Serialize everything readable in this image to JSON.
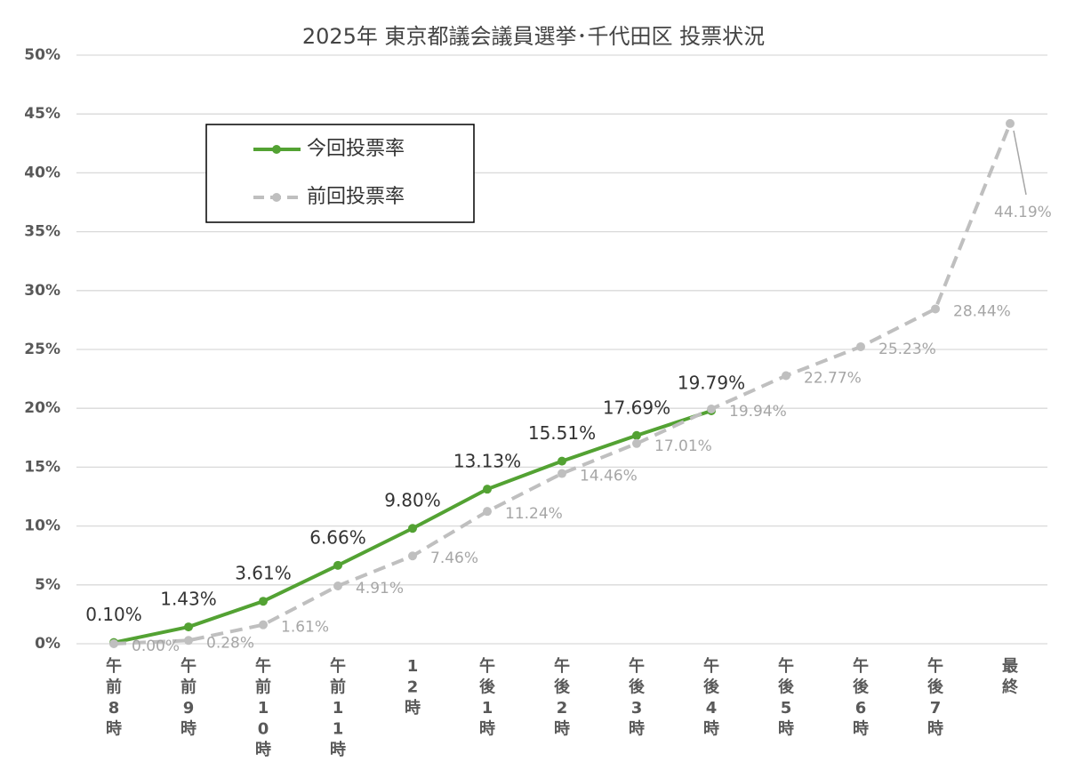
{
  "chart_data": {
    "type": "line",
    "title": "2025年  東京都議会議員選挙･千代田区  投票状況",
    "categories": [
      "午前8時",
      "午前9時",
      "午前10時",
      "午前11時",
      "12時",
      "午後1時",
      "午後2時",
      "午後3時",
      "午後4時",
      "午後5時",
      "午後6時",
      "午後7時",
      "最終"
    ],
    "series": [
      {
        "name": "今回投票率",
        "color": "#53a233",
        "dash": false,
        "values": [
          0.1,
          1.43,
          3.61,
          6.66,
          9.8,
          13.13,
          15.51,
          17.69,
          19.79,
          null,
          null,
          null,
          null
        ],
        "value_labels": [
          "0.10%",
          "1.43%",
          "3.61%",
          "6.66%",
          "9.80%",
          "13.13%",
          "15.51%",
          "17.69%",
          "19.79%",
          null,
          null,
          null,
          null
        ]
      },
      {
        "name": "前回投票率",
        "color": "#bfbfbf",
        "dash": true,
        "values": [
          0.0,
          0.28,
          1.61,
          4.91,
          7.46,
          11.24,
          14.46,
          17.01,
          19.94,
          22.77,
          25.23,
          28.44,
          44.19
        ],
        "value_labels": [
          "0.00%",
          "0.28%",
          "1.61%",
          "4.91%",
          "7.46%",
          "11.24%",
          "14.46%",
          "17.01%",
          "19.94%",
          "22.77%",
          "25.23%",
          "28.44%",
          "44.19%"
        ]
      }
    ],
    "ylim": [
      0,
      50
    ],
    "yticks": [
      {
        "value": 0,
        "label": "0%"
      },
      {
        "value": 5,
        "label": "5%"
      },
      {
        "value": 10,
        "label": "10%"
      },
      {
        "value": 15,
        "label": "15%"
      },
      {
        "value": 20,
        "label": "20%"
      },
      {
        "value": 25,
        "label": "25%"
      },
      {
        "value": 30,
        "label": "30%"
      },
      {
        "value": 35,
        "label": "35%"
      },
      {
        "value": 40,
        "label": "40%"
      },
      {
        "value": 45,
        "label": "45%"
      },
      {
        "value": 50,
        "label": "50%"
      }
    ],
    "grid": true,
    "legend": "upper left"
  }
}
